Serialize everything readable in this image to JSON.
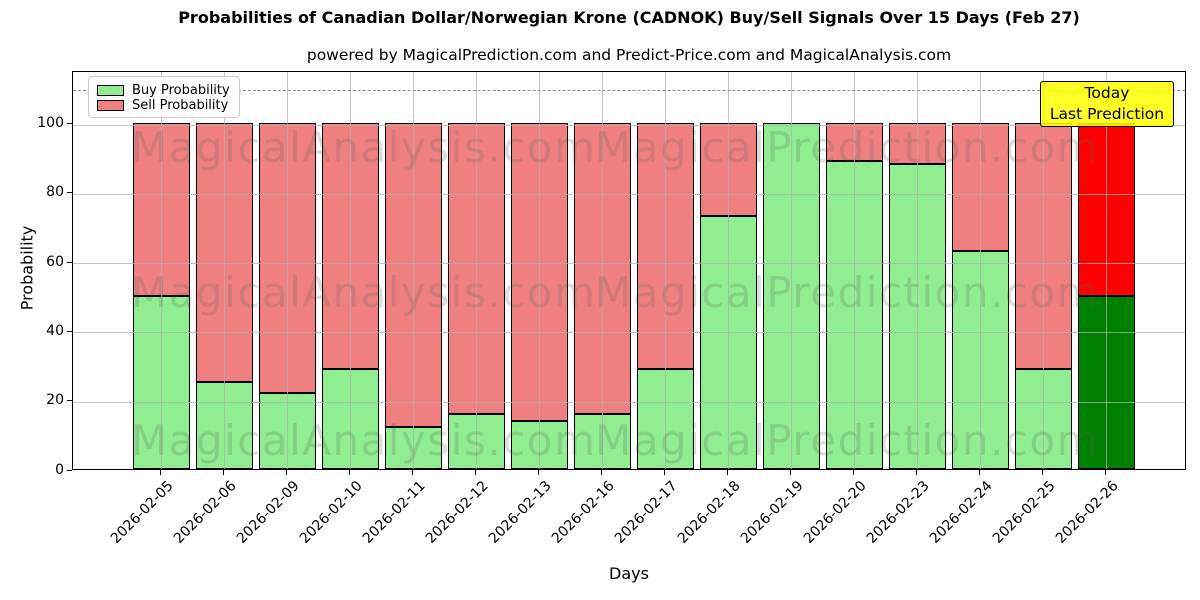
{
  "title": "Probabilities of Canadian Dollar/Norwegian Krone (CADNOK) Buy/Sell Signals Over 15 Days (Feb 27)",
  "subtitle": "powered by MagicalPrediction.com and Predict-Price.com and MagicalAnalysis.com",
  "axes": {
    "xlabel": "Days",
    "ylabel": "Probability",
    "yticks": [
      0,
      20,
      40,
      60,
      80,
      100
    ],
    "ylim": [
      0,
      115
    ],
    "dashed_threshold_y": 110,
    "grid": true
  },
  "legend": {
    "position": "upper-left",
    "items": [
      {
        "label": "Buy Probability",
        "color": "#90EE90"
      },
      {
        "label": "Sell Probability",
        "color": "#F08080"
      }
    ]
  },
  "annotation_box": {
    "line1": "Today",
    "line2": "Last Prediction",
    "bg_color": "#FFFF00",
    "border_color": "#000000"
  },
  "watermarks": {
    "texts": [
      "MagicalAnalysis.com",
      "MagicalPrediction.com"
    ],
    "color_hint": "semi-transparent gray"
  },
  "colors": {
    "buy": "#90EE90",
    "sell": "#F08080",
    "buy_today": "#008000",
    "sell_today": "#FF0000",
    "bar_edge": "#000000",
    "annotation_bg": "#FFFF00"
  },
  "chart_data": {
    "type": "bar",
    "stacked": true,
    "title": "Probabilities of Canadian Dollar/Norwegian Krone (CADNOK) Buy/Sell Signals Over 15 Days (Feb 27)",
    "xlabel": "Days",
    "ylabel": "Probability",
    "ylim": [
      0,
      115
    ],
    "grid": true,
    "legend_position": "upper left",
    "categories": [
      "2026-02-05",
      "2026-02-06",
      "2026-02-09",
      "2026-02-10",
      "2026-02-11",
      "2026-02-12",
      "2026-02-13",
      "2026-02-16",
      "2026-02-17",
      "2026-02-18",
      "2026-02-19",
      "2026-02-20",
      "2026-02-23",
      "2026-02-24",
      "2026-02-25",
      "2026-02-26"
    ],
    "series": [
      {
        "name": "Buy Probability",
        "color": "#90EE90",
        "today_color": "#008000",
        "values": [
          50,
          25,
          22,
          29,
          12,
          16,
          14,
          16,
          29,
          73,
          100,
          89,
          88,
          63,
          29,
          50
        ]
      },
      {
        "name": "Sell Probability",
        "color": "#F08080",
        "today_color": "#FF0000",
        "values": [
          50,
          75,
          78,
          71,
          88,
          84,
          86,
          84,
          71,
          27,
          0,
          11,
          12,
          37,
          71,
          50
        ]
      }
    ],
    "today_index": 15,
    "dashed_threshold_y": 110
  }
}
